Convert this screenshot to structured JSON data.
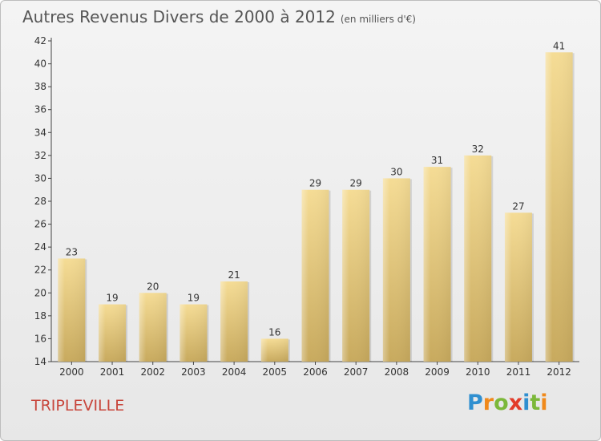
{
  "title": "Autres Revenus Divers de 2000 à 2012",
  "subtitle": "(en milliers d'€)",
  "town": "TRIPLEVILLE",
  "logo": {
    "letters": [
      "P",
      "r",
      "o",
      "x",
      "i",
      "t",
      "i"
    ],
    "colors": [
      "#2f8fd0",
      "#f0891b",
      "#7cb83a",
      "#e23c2a",
      "#2f8fd0",
      "#7cb83a",
      "#f0891b"
    ]
  },
  "chart_data": {
    "type": "bar",
    "categories": [
      "2000",
      "2001",
      "2002",
      "2003",
      "2004",
      "2005",
      "2006",
      "2007",
      "2008",
      "2009",
      "2010",
      "2011",
      "2012"
    ],
    "values": [
      23,
      19,
      20,
      19,
      21,
      16,
      29,
      29,
      30,
      31,
      32,
      27,
      41
    ],
    "ylim": [
      14,
      42
    ],
    "yticks": [
      14,
      16,
      18,
      20,
      22,
      24,
      26,
      28,
      30,
      32,
      34,
      36,
      38,
      40,
      42
    ],
    "grid": false,
    "bar_color_top": "#f5dc95",
    "bar_color_bottom": "#c8aa5e"
  }
}
